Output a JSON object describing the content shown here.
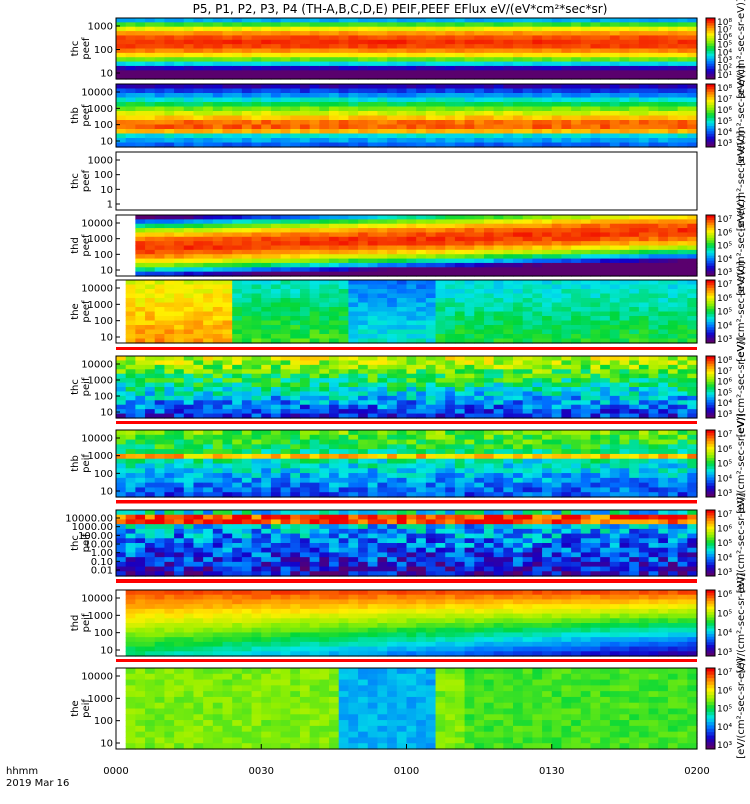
{
  "chart_data": {
    "type": "heatmap",
    "title": "P5, P1, P2, P3, P4 (TH-A,B,C,D,E) PEIF,PEEF EFlux eV/(eV*cm²*sec*sr)",
    "time_axis": {
      "label": "hhmm",
      "date": "2019 Mar 16",
      "ticks": [
        "0000",
        "0030",
        "0100",
        "0130",
        "0200"
      ],
      "range": [
        "00:00",
        "02:00"
      ]
    },
    "colorscale": "rainbow",
    "panels": [
      {
        "id": "thc_peef",
        "ylabel": [
          "thc",
          "peef"
        ],
        "yticks": [
          "1000",
          "100",
          "10"
        ],
        "log": true,
        "cbar_ticks": [
          "10⁸",
          "10⁷",
          "10⁶",
          "10⁵",
          "10⁴",
          "10³",
          "10²",
          "10¹"
        ],
        "cbar_label": "[eV/(cm²-sec-sr-eV)]",
        "description": "Ion/electron energy flux peaking in red at 300–3000 eV across the interval"
      },
      {
        "id": "thb_peef",
        "ylabel": [
          "thb",
          "peef"
        ],
        "yticks": [
          "10000",
          "1000",
          "100",
          "10"
        ],
        "log": true,
        "cbar_ticks": [
          "10⁸",
          "10⁷",
          "10⁶",
          "10⁵",
          "10⁴",
          "10³"
        ],
        "cbar_label": "[eV/(cm²-sec-sr-eV)]"
      },
      {
        "id": "thc_peef_empty",
        "ylabel": [
          "thc",
          "peef"
        ],
        "yticks": [
          "1000",
          "100",
          "10",
          "1"
        ],
        "log": true,
        "cbar_ticks": [],
        "cbar_label": "[eV/(cm²-sec-sr-eV)]"
      },
      {
        "id": "thd_peef",
        "ylabel": [
          "thd",
          "peef"
        ],
        "yticks": [
          "10000",
          "1000",
          "100",
          "10"
        ],
        "log": true,
        "cbar_ticks": [
          "10⁷",
          "10⁶",
          "10⁵",
          "10⁴",
          "10³"
        ],
        "cbar_label": "[eV/(cm²-sec-sr-eV)]"
      },
      {
        "id": "the_peef",
        "ylabel": [
          "the",
          "peef"
        ],
        "yticks": [
          "10000",
          "1000",
          "100",
          "10"
        ],
        "log": true,
        "cbar_ticks": [
          "10⁷",
          "10⁶",
          "10⁵",
          "10⁴",
          "10³"
        ],
        "cbar_label": "[eV/(cm²-sec-sr-eV)]"
      },
      {
        "id": "thc_peif",
        "ylabel": [
          "thc",
          "peif"
        ],
        "yticks": [
          "10000",
          "1000",
          "100",
          "10"
        ],
        "log": true,
        "cbar_ticks": [
          "10⁸",
          "10⁷",
          "10⁶",
          "10⁵",
          "10⁴",
          "10³"
        ],
        "cbar_label": "[eV/(cm²-sec-sr-eV)]"
      },
      {
        "id": "thb_peif",
        "ylabel": [
          "thb",
          "peif"
        ],
        "yticks": [
          "10000",
          "1000",
          "100",
          "10"
        ],
        "log": true,
        "cbar_ticks": [
          "10⁷",
          "10⁶",
          "10⁵",
          "10⁴",
          "10³"
        ],
        "cbar_label": "[eV/(cm²-sec-sr-eV)]"
      },
      {
        "id": "thc_peif_2",
        "ylabel": [
          "thc",
          "peif"
        ],
        "yticks": [
          "10000.00",
          "1000.00",
          "100.00",
          "10.00",
          "1.00",
          "0.10",
          "0.01"
        ],
        "log": true,
        "cbar_ticks": [
          "10⁷",
          "10⁶",
          "10⁵",
          "10⁴",
          "10³"
        ],
        "cbar_label": "[eV/(cm²-sec-sr-eV)]"
      },
      {
        "id": "thd_peif",
        "ylabel": [
          "thd",
          "peif"
        ],
        "yticks": [
          "10000",
          "1000",
          "100",
          "10"
        ],
        "log": true,
        "cbar_ticks": [
          "10⁶",
          "10⁵",
          "10⁴",
          "10³"
        ],
        "cbar_label": "[eV/(cm²-sec-sr-eV)]"
      },
      {
        "id": "the_peif",
        "ylabel": [
          "the",
          "peif"
        ],
        "yticks": [
          "10000",
          "1000",
          "100",
          "10"
        ],
        "log": true,
        "cbar_ticks": [
          "10⁷",
          "10⁶",
          "10⁵",
          "10⁴",
          "10³"
        ],
        "cbar_label": "[eV/(cm²-sec-sr-eV)]"
      }
    ]
  }
}
